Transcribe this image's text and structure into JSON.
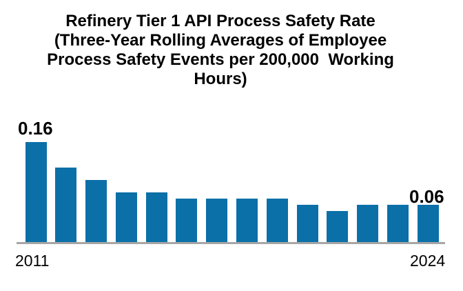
{
  "chart_data": {
    "type": "bar",
    "title": "Refinery Tier 1 API Process Safety Rate (Three-Year Rolling Averages of Employee Process Safety Events per 200,000  Working Hours)",
    "title_lines": [
      "Refinery Tier 1 API Process Safety Rate",
      "(Three-Year Rolling Averages of Employee",
      "Process Safety Events per 200,000  Working",
      "Hours)"
    ],
    "categories": [
      "2011",
      "2012",
      "2013",
      "2014",
      "2015",
      "2016",
      "2017",
      "2018",
      "2019",
      "2020",
      "2021",
      "2022",
      "2023",
      "2024"
    ],
    "values": [
      0.16,
      0.12,
      0.1,
      0.08,
      0.08,
      0.07,
      0.07,
      0.07,
      0.07,
      0.06,
      0.05,
      0.06,
      0.06,
      0.06
    ],
    "data_labels": {
      "first": "0.16",
      "last": "0.06"
    },
    "x_tick_labels_shown": [
      "2011",
      "2024"
    ],
    "xlabel": "",
    "ylabel": "",
    "ylim": [
      0,
      0.18
    ],
    "grid": false,
    "legend": false,
    "colors": {
      "bar": "#0B70A8",
      "axis_line": "#A6A6A6",
      "text": "#000000",
      "background": "#FFFFFF"
    }
  }
}
